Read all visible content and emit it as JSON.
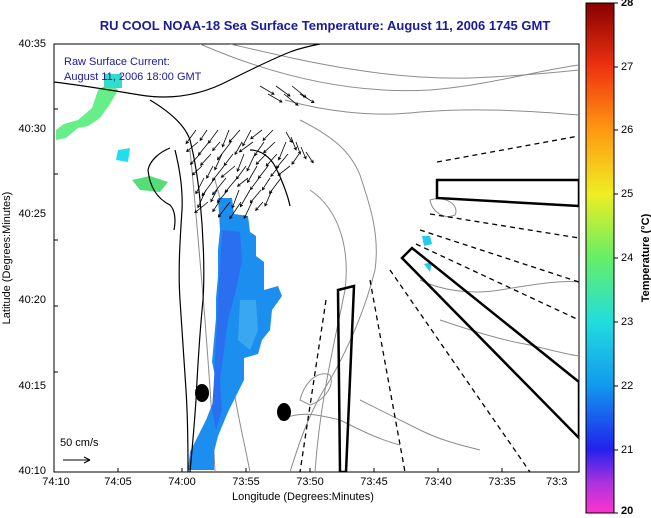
{
  "title": "RU COOL  NOAA-18  Sea Surface Temperature:  August 11, 2006 1745 GMT",
  "overlay": {
    "line1": "Raw Surface Current:",
    "line2": "August 11, 2006 18:00 GMT"
  },
  "axes": {
    "xlabel": "Longitude (Degrees:Minutes)",
    "ylabel": "Latitude (Degrees:Minutes)",
    "xticks": [
      "74:10",
      "74:05",
      "74:00",
      "73:55",
      "73:50",
      "73:45",
      "73:40",
      "73:35",
      "73:3"
    ],
    "yticks": [
      "40:35",
      "40:30",
      "40:25",
      "40:20",
      "40:15",
      "40:10"
    ]
  },
  "colorbar": {
    "label": "Temperature (°C)",
    "ticks": [
      "28",
      "27",
      "26",
      "25",
      "24",
      "23",
      "22",
      "21",
      "20"
    ],
    "range": [
      20,
      28
    ]
  },
  "scale": {
    "label": "50 cm/s"
  },
  "colors": {
    "title_blue": "#1a1aa0",
    "land": "#ffffff",
    "coast": "#000000",
    "bathymetry": "#888888"
  }
}
